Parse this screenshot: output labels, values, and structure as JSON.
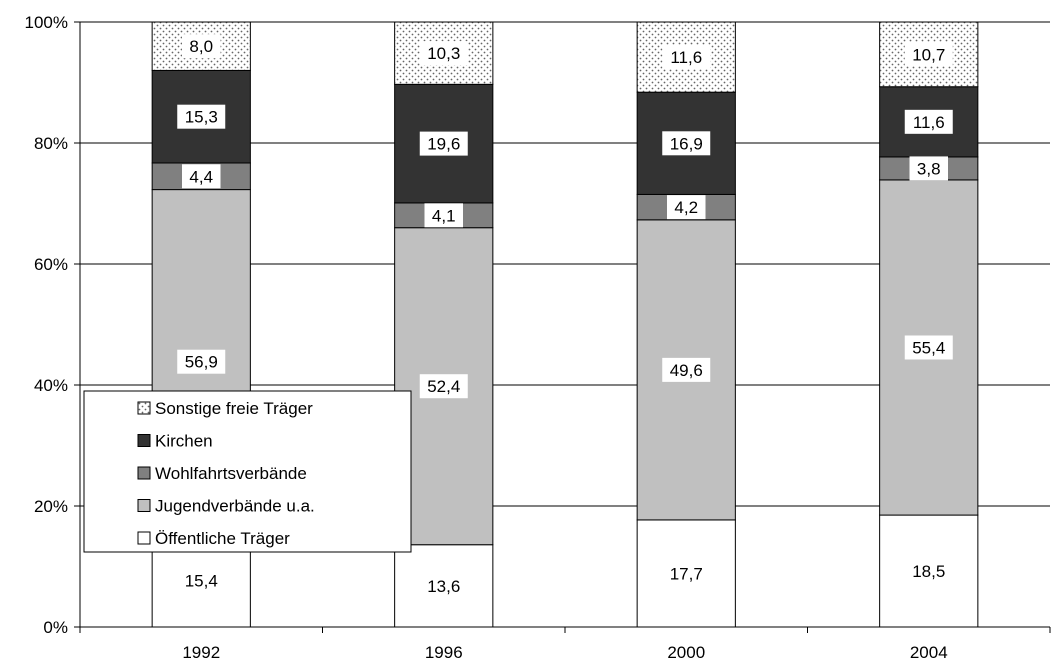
{
  "chart_data": {
    "type": "bar",
    "stacked": true,
    "percent": true,
    "categories": [
      "1992",
      "1996",
      "2000",
      "2004"
    ],
    "series": [
      {
        "name": "Öffentliche Träger",
        "values": [
          15.4,
          13.6,
          17.7,
          18.5
        ],
        "labels": [
          "15,4",
          "13,6",
          "17,7",
          "18,5"
        ],
        "color": "#ffffff"
      },
      {
        "name": "Jugendverbände u.a.",
        "values": [
          56.9,
          52.4,
          49.6,
          55.4
        ],
        "labels": [
          "56,9",
          "52,4",
          "49,6",
          "55,4"
        ],
        "color": "#c0c0c0"
      },
      {
        "name": "Wohlfahrtsverbände",
        "values": [
          4.4,
          4.1,
          4.2,
          3.8
        ],
        "labels": [
          "4,4",
          "4,1",
          "4,2",
          "3,8"
        ],
        "color": "#808080"
      },
      {
        "name": "Kirchen",
        "values": [
          15.3,
          19.6,
          16.9,
          11.6
        ],
        "labels": [
          "15,3",
          "19,6",
          "16,9",
          "11,6"
        ],
        "color": "#333333"
      },
      {
        "name": "Sonstige freie Träger",
        "values": [
          8.0,
          10.3,
          11.6,
          10.7
        ],
        "labels": [
          "8,0",
          "10,3",
          "11,6",
          "10,7"
        ],
        "color": "#ffffff",
        "pattern": "dotted"
      }
    ],
    "yticks": [
      "0%",
      "20%",
      "40%",
      "60%",
      "80%",
      "100%"
    ],
    "ylim": [
      0,
      100
    ],
    "grid": true,
    "legend": {
      "placement": "lower-left",
      "entries": [
        "Sonstige freie Träger",
        "Kirchen",
        "Wohlfahrtsverbände",
        "Jugendverbände u.a.",
        "Öffentliche Träger"
      ]
    }
  }
}
